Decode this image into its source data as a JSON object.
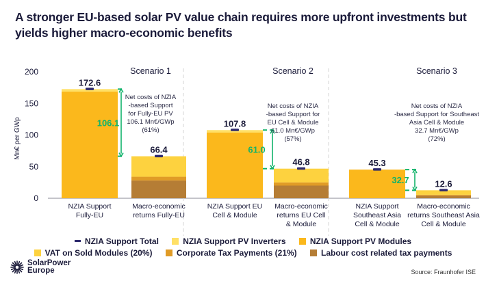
{
  "title": "A stronger EU-based solar PV value chain requires more upfront investments but yields higher macro-economic benefits",
  "chart_data": {
    "type": "bar",
    "stacked": true,
    "ylabel": "Mn€ per GWp",
    "ylim": [
      0,
      200
    ],
    "yticks": [
      0,
      50,
      100,
      150,
      200
    ],
    "grid": false,
    "legend_position": "bottom",
    "scenarios": [
      {
        "name": "Scenario 1",
        "bars": [
          {
            "category": "NZIA Support\nFully-EU",
            "total": 172.6,
            "segments": {
              "NZIA Support PV Modules": 168.6,
              "NZIA Support PV Inverters": 4.0
            }
          },
          {
            "category": "Macro-economic\nreturns Fully-EU",
            "total": 66.4,
            "segments": {
              "Labour cost related tax payments": 28.0,
              "Corporate Tax Payments (21%)": 6.0,
              "VAT on Sold Modules (20%)": 32.4
            }
          }
        ],
        "difference": "106.1",
        "annotation": [
          "Net costs of NZIA",
          "-based Support",
          "for Fully-EU PV",
          "106.1 Mn€/GWp",
          "(61%)"
        ]
      },
      {
        "name": "Scenario 2",
        "bars": [
          {
            "category": "NZIA Support EU\nCell & Module",
            "total": 107.8,
            "segments": {
              "NZIA Support PV Modules": 103.8,
              "NZIA Support PV Inverters": 4.0
            }
          },
          {
            "category": "Macro-economic\nreturns EU Cell\n& Module",
            "total": 46.8,
            "segments": {
              "Labour cost related tax payments": 20.0,
              "Corporate Tax Payments (21%)": 5.0,
              "VAT on Sold Modules (20%)": 21.8
            }
          }
        ],
        "difference": "61.0",
        "annotation": [
          "Net costs of NZIA",
          "-based Support for",
          "EU Cell & Module",
          "61.0 Mn€/GWp",
          "(57%)"
        ]
      },
      {
        "name": "Scenario 3",
        "bars": [
          {
            "category": "NZIA Support\nSoutheast Asia\nCell & Module",
            "total": 45.3,
            "segments": {
              "NZIA Support PV Modules": 45.3,
              "NZIA Support PV Inverters": 0.0
            }
          },
          {
            "category": "Macro-economic\nreturns Southeast Asia\nCell & Module",
            "total": 12.6,
            "segments": {
              "Labour cost related tax payments": 4.0,
              "Corporate Tax Payments (21%)": 1.5,
              "VAT on Sold Modules (20%)": 7.1
            }
          }
        ],
        "difference": "32.7",
        "annotation": [
          "Net costs of NZIA",
          "-based Support for Southeast",
          "Asia Cell & Module",
          "32.7 Mn€/GWp",
          "(72%)"
        ]
      }
    ],
    "series_colors": {
      "NZIA Support Total": "#2e2a6e",
      "NZIA Support PV Inverters": "#ffe066",
      "NZIA Support PV Modules": "#fbb81c",
      "VAT on Sold Modules (20%)": "#fdd23f",
      "Corporate Tax Payments (21%)": "#e09b26",
      "Labour cost related tax payments": "#b57d35"
    },
    "difference_color": "#11b36b"
  },
  "legend": {
    "row1": [
      {
        "label": "NZIA Support Total",
        "color": "#2e2a6e",
        "kind": "line"
      },
      {
        "label": "NZIA Support PV Inverters",
        "color": "#ffe066",
        "kind": "box"
      },
      {
        "label": "NZIA Support PV Modules",
        "color": "#fbb81c",
        "kind": "box"
      }
    ],
    "row2": [
      {
        "label": "VAT on Sold Modules (20%)",
        "color": "#fdd23f",
        "kind": "box"
      },
      {
        "label": "Corporate Tax Payments (21%)",
        "color": "#e09b26",
        "kind": "box"
      },
      {
        "label": "Labour cost related tax payments",
        "color": "#b57d35",
        "kind": "box"
      }
    ]
  },
  "logo": {
    "line1": "SolarPower",
    "line2": "Europe"
  },
  "source": "Source: Fraunhofer ISE"
}
